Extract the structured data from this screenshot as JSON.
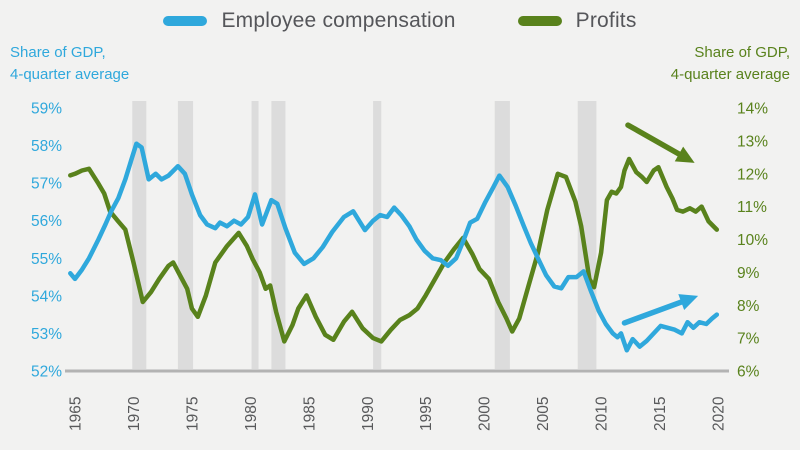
{
  "legend": {
    "items": [
      {
        "label": "Employee compensation",
        "color": "#2fa8dc"
      },
      {
        "label": "Profits",
        "color": "#59821c"
      }
    ]
  },
  "left_axis": {
    "title_line1": "Share of GDP,",
    "title_line2": "4-quarter average",
    "color": "#2fa8dc",
    "ticks": [
      "59%",
      "58%",
      "57%",
      "56%",
      "55%",
      "54%",
      "53%",
      "52%"
    ],
    "max": 59,
    "min": 52
  },
  "right_axis": {
    "title_line1": "Share of GDP,",
    "title_line2": "4-quarter average",
    "color": "#59821c",
    "ticks": [
      "14%",
      "13%",
      "12%",
      "11%",
      "10%",
      "9%",
      "8%",
      "7%",
      "6%"
    ],
    "max": 14,
    "min": 6
  },
  "x_axis": {
    "ticks": [
      "1965",
      "1970",
      "1975",
      "1980",
      "1985",
      "1990",
      "1995",
      "2000",
      "2005",
      "2010",
      "2015",
      "2020"
    ],
    "tick_years": [
      1965,
      1970,
      1975,
      1980,
      1985,
      1990,
      1995,
      2000,
      2005,
      2010,
      2015,
      2020
    ],
    "color": "#58595b"
  },
  "colors": {
    "background": "#f2f2f1",
    "recession_band": "#dcdcdc",
    "baseline": "#b3b3b3",
    "blue": "#2fa8dc",
    "green": "#59821c"
  },
  "chart_data": {
    "type": "line",
    "title": "",
    "xlabel": "",
    "ylabel_left": "Share of GDP, 4-quarter average (employee compensation)",
    "ylabel_right": "Share of GDP, 4-quarter average (profits)",
    "x_range": [
      1964.5,
      2020.6
    ],
    "left_ylim": [
      52,
      59
    ],
    "right_ylim": [
      6,
      14
    ],
    "grid": false,
    "legend_position": "top-center",
    "series": [
      {
        "name": "Employee compensation",
        "axis": "left",
        "color": "#2fa8dc",
        "points": [
          [
            1964.6,
            54.6
          ],
          [
            1965.0,
            54.45
          ],
          [
            1965.6,
            54.7
          ],
          [
            1966.2,
            55.0
          ],
          [
            1967.0,
            55.5
          ],
          [
            1967.6,
            55.9
          ],
          [
            1968.1,
            56.25
          ],
          [
            1968.7,
            56.6
          ],
          [
            1969.3,
            57.1
          ],
          [
            1969.8,
            57.6
          ],
          [
            1970.25,
            58.05
          ],
          [
            1970.7,
            57.95
          ],
          [
            1971.3,
            57.1
          ],
          [
            1971.9,
            57.25
          ],
          [
            1972.4,
            57.1
          ],
          [
            1973.0,
            57.2
          ],
          [
            1973.8,
            57.45
          ],
          [
            1974.4,
            57.25
          ],
          [
            1975.0,
            56.7
          ],
          [
            1975.7,
            56.15
          ],
          [
            1976.3,
            55.9
          ],
          [
            1977.0,
            55.8
          ],
          [
            1977.4,
            55.95
          ],
          [
            1978.0,
            55.85
          ],
          [
            1978.6,
            56.0
          ],
          [
            1979.2,
            55.9
          ],
          [
            1979.8,
            56.1
          ],
          [
            1980.4,
            56.7
          ],
          [
            1981.0,
            55.9
          ],
          [
            1981.8,
            56.55
          ],
          [
            1982.3,
            56.45
          ],
          [
            1983.0,
            55.8
          ],
          [
            1983.8,
            55.15
          ],
          [
            1984.6,
            54.85
          ],
          [
            1985.4,
            55.0
          ],
          [
            1986.2,
            55.3
          ],
          [
            1987.0,
            55.7
          ],
          [
            1988.0,
            56.1
          ],
          [
            1988.8,
            56.25
          ],
          [
            1989.8,
            55.75
          ],
          [
            1990.5,
            56.0
          ],
          [
            1991.1,
            56.15
          ],
          [
            1991.7,
            56.1
          ],
          [
            1992.3,
            56.35
          ],
          [
            1992.9,
            56.15
          ],
          [
            1993.6,
            55.85
          ],
          [
            1994.2,
            55.5
          ],
          [
            1994.9,
            55.2
          ],
          [
            1995.6,
            55.0
          ],
          [
            1996.3,
            54.95
          ],
          [
            1996.9,
            54.8
          ],
          [
            1997.6,
            55.0
          ],
          [
            1998.2,
            55.45
          ],
          [
            1998.8,
            55.95
          ],
          [
            1999.4,
            56.05
          ],
          [
            2000.1,
            56.5
          ],
          [
            2000.8,
            56.9
          ],
          [
            2001.3,
            57.2
          ],
          [
            2002.0,
            56.9
          ],
          [
            2002.7,
            56.4
          ],
          [
            2003.4,
            55.85
          ],
          [
            2004.0,
            55.4
          ],
          [
            2004.6,
            55.0
          ],
          [
            2005.3,
            54.55
          ],
          [
            2006.0,
            54.25
          ],
          [
            2006.6,
            54.2
          ],
          [
            2007.2,
            54.5
          ],
          [
            2007.9,
            54.5
          ],
          [
            2008.5,
            54.65
          ],
          [
            2009.1,
            54.15
          ],
          [
            2009.8,
            53.6
          ],
          [
            2010.4,
            53.25
          ],
          [
            2011.0,
            53.0
          ],
          [
            2011.4,
            52.9
          ],
          [
            2011.7,
            53.0
          ],
          [
            2012.2,
            52.55
          ],
          [
            2012.7,
            52.85
          ],
          [
            2013.3,
            52.65
          ],
          [
            2013.9,
            52.8
          ],
          [
            2014.5,
            53.0
          ],
          [
            2015.1,
            53.2
          ],
          [
            2015.7,
            53.15
          ],
          [
            2016.3,
            53.1
          ],
          [
            2016.9,
            53.0
          ],
          [
            2017.4,
            53.3
          ],
          [
            2017.9,
            53.15
          ],
          [
            2018.4,
            53.3
          ],
          [
            2019.0,
            53.25
          ],
          [
            2019.5,
            53.4
          ],
          [
            2019.9,
            53.5
          ]
        ]
      },
      {
        "name": "Profits",
        "axis": "right",
        "color": "#59821c",
        "points": [
          [
            1964.6,
            11.95
          ],
          [
            1965.0,
            12.0
          ],
          [
            1965.6,
            12.1
          ],
          [
            1966.2,
            12.15
          ],
          [
            1967.0,
            11.7
          ],
          [
            1967.5,
            11.4
          ],
          [
            1968.0,
            10.85
          ],
          [
            1968.7,
            10.55
          ],
          [
            1969.3,
            10.3
          ],
          [
            1970.0,
            9.3
          ],
          [
            1970.8,
            8.1
          ],
          [
            1971.5,
            8.4
          ],
          [
            1972.2,
            8.8
          ],
          [
            1973.0,
            9.2
          ],
          [
            1973.4,
            9.3
          ],
          [
            1974.0,
            8.9
          ],
          [
            1974.6,
            8.5
          ],
          [
            1975.0,
            7.9
          ],
          [
            1975.5,
            7.65
          ],
          [
            1976.2,
            8.3
          ],
          [
            1977.0,
            9.3
          ],
          [
            1978.0,
            9.8
          ],
          [
            1979.0,
            10.2
          ],
          [
            1979.7,
            9.8
          ],
          [
            1980.2,
            9.4
          ],
          [
            1980.8,
            9.0
          ],
          [
            1981.3,
            8.5
          ],
          [
            1981.7,
            8.6
          ],
          [
            1982.2,
            7.8
          ],
          [
            1982.9,
            6.9
          ],
          [
            1983.6,
            7.4
          ],
          [
            1984.1,
            7.9
          ],
          [
            1984.8,
            8.3
          ],
          [
            1985.6,
            7.65
          ],
          [
            1986.4,
            7.1
          ],
          [
            1987.1,
            6.95
          ],
          [
            1988.0,
            7.5
          ],
          [
            1988.7,
            7.8
          ],
          [
            1989.6,
            7.3
          ],
          [
            1990.5,
            7.0
          ],
          [
            1991.2,
            6.9
          ],
          [
            1992.0,
            7.25
          ],
          [
            1992.8,
            7.55
          ],
          [
            1993.6,
            7.7
          ],
          [
            1994.3,
            7.9
          ],
          [
            1995.0,
            8.3
          ],
          [
            1995.8,
            8.8
          ],
          [
            1996.6,
            9.3
          ],
          [
            1997.4,
            9.7
          ],
          [
            1998.2,
            10.05
          ],
          [
            1999.0,
            9.55
          ],
          [
            1999.6,
            9.1
          ],
          [
            2000.4,
            8.8
          ],
          [
            2001.2,
            8.1
          ],
          [
            2001.9,
            7.6
          ],
          [
            2002.4,
            7.2
          ],
          [
            2003.0,
            7.6
          ],
          [
            2003.8,
            8.6
          ],
          [
            2004.6,
            9.6
          ],
          [
            2005.4,
            10.9
          ],
          [
            2006.3,
            12.0
          ],
          [
            2007.0,
            11.9
          ],
          [
            2007.8,
            11.15
          ],
          [
            2008.3,
            10.4
          ],
          [
            2009.0,
            8.8
          ],
          [
            2009.4,
            8.55
          ],
          [
            2010.0,
            9.6
          ],
          [
            2010.5,
            11.2
          ],
          [
            2010.9,
            11.45
          ],
          [
            2011.3,
            11.4
          ],
          [
            2011.7,
            11.6
          ],
          [
            2012.0,
            12.1
          ],
          [
            2012.4,
            12.45
          ],
          [
            2013.0,
            12.05
          ],
          [
            2013.5,
            11.9
          ],
          [
            2013.9,
            11.75
          ],
          [
            2014.5,
            12.1
          ],
          [
            2014.9,
            12.2
          ],
          [
            2015.6,
            11.6
          ],
          [
            2016.1,
            11.25
          ],
          [
            2016.5,
            10.9
          ],
          [
            2017.0,
            10.85
          ],
          [
            2017.6,
            10.95
          ],
          [
            2018.1,
            10.85
          ],
          [
            2018.6,
            11.0
          ],
          [
            2019.2,
            10.55
          ],
          [
            2019.9,
            10.3
          ]
        ]
      }
    ],
    "recession_bands": [
      [
        1969.9,
        1971.1
      ],
      [
        1973.8,
        1975.1
      ],
      [
        1980.1,
        1980.7
      ],
      [
        1981.8,
        1983.0
      ],
      [
        1990.5,
        1991.2
      ],
      [
        2000.9,
        2002.2
      ],
      [
        2008.0,
        2009.6
      ]
    ],
    "annotations": {
      "arrows": [
        {
          "name": "profits-trend-arrow",
          "axis": "right",
          "color": "#59821c",
          "from": [
            2012.3,
            13.48
          ],
          "to": [
            2018.0,
            12.33
          ]
        },
        {
          "name": "compensation-trend-arrow",
          "axis": "left",
          "color": "#2fa8dc",
          "from": [
            2012.0,
            53.28
          ],
          "to": [
            2018.3,
            54.0
          ]
        }
      ]
    }
  }
}
